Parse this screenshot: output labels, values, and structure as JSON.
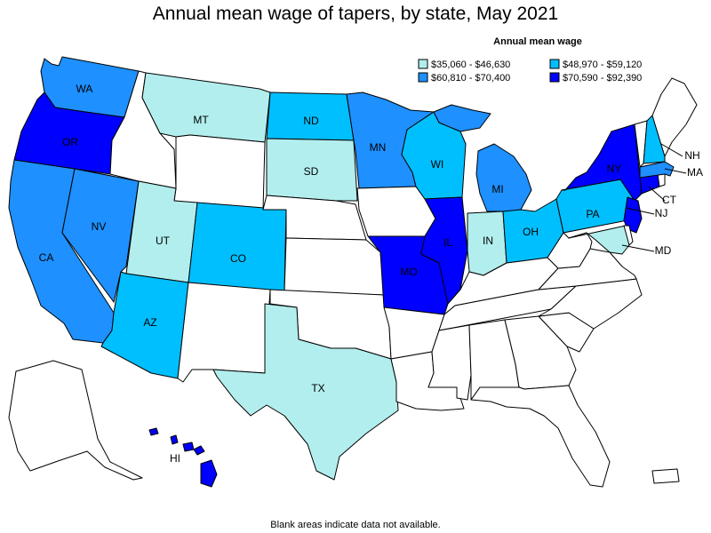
{
  "title": "Annual mean wage of tapers, by state, May 2021",
  "footnote": "Blank areas indicate data not available.",
  "legend": {
    "title": "Annual mean wage",
    "items": [
      {
        "label": "$35,060 - $46,630",
        "color": "#b2eeee"
      },
      {
        "label": "$48,970 - $59,120",
        "color": "#00bfff"
      },
      {
        "label": "$60,810 - $70,400",
        "color": "#1e90ff"
      },
      {
        "label": "$70,590 - $92,390",
        "color": "#0000ff"
      }
    ]
  },
  "colors": {
    "no_data": "#ffffff",
    "outline": "#000000"
  },
  "states": [
    {
      "code": "WA",
      "bin": 2,
      "labeled": true
    },
    {
      "code": "OR",
      "bin": 3,
      "labeled": true
    },
    {
      "code": "CA",
      "bin": 2,
      "labeled": true
    },
    {
      "code": "NV",
      "bin": 2,
      "labeled": true
    },
    {
      "code": "ID",
      "bin": null,
      "labeled": false
    },
    {
      "code": "MT",
      "bin": 0,
      "labeled": true
    },
    {
      "code": "WY",
      "bin": null,
      "labeled": false
    },
    {
      "code": "UT",
      "bin": 0,
      "labeled": true
    },
    {
      "code": "AZ",
      "bin": 1,
      "labeled": true
    },
    {
      "code": "CO",
      "bin": 1,
      "labeled": true
    },
    {
      "code": "NM",
      "bin": null,
      "labeled": false
    },
    {
      "code": "ND",
      "bin": 1,
      "labeled": true
    },
    {
      "code": "SD",
      "bin": 0,
      "labeled": true
    },
    {
      "code": "NE",
      "bin": null,
      "labeled": false
    },
    {
      "code": "KS",
      "bin": null,
      "labeled": false
    },
    {
      "code": "OK",
      "bin": null,
      "labeled": false
    },
    {
      "code": "TX",
      "bin": 0,
      "labeled": true
    },
    {
      "code": "MN",
      "bin": 2,
      "labeled": true
    },
    {
      "code": "IA",
      "bin": null,
      "labeled": false
    },
    {
      "code": "MO",
      "bin": 3,
      "labeled": true
    },
    {
      "code": "AR",
      "bin": null,
      "labeled": false
    },
    {
      "code": "LA",
      "bin": null,
      "labeled": false
    },
    {
      "code": "WI",
      "bin": 1,
      "labeled": true
    },
    {
      "code": "IL",
      "bin": 3,
      "labeled": true
    },
    {
      "code": "MI",
      "bin": 2,
      "labeled": true
    },
    {
      "code": "IN",
      "bin": 0,
      "labeled": true
    },
    {
      "code": "OH",
      "bin": 1,
      "labeled": true
    },
    {
      "code": "KY",
      "bin": null,
      "labeled": false
    },
    {
      "code": "TN",
      "bin": null,
      "labeled": false
    },
    {
      "code": "MS",
      "bin": null,
      "labeled": false
    },
    {
      "code": "AL",
      "bin": null,
      "labeled": false
    },
    {
      "code": "GA",
      "bin": null,
      "labeled": false
    },
    {
      "code": "FL",
      "bin": null,
      "labeled": false
    },
    {
      "code": "SC",
      "bin": null,
      "labeled": false
    },
    {
      "code": "NC",
      "bin": null,
      "labeled": false
    },
    {
      "code": "VA",
      "bin": null,
      "labeled": false
    },
    {
      "code": "WV",
      "bin": null,
      "labeled": false
    },
    {
      "code": "PA",
      "bin": 1,
      "labeled": true
    },
    {
      "code": "NY",
      "bin": 3,
      "labeled": true
    },
    {
      "code": "NJ",
      "bin": 3,
      "labeled": true
    },
    {
      "code": "MD",
      "bin": 0,
      "labeled": true
    },
    {
      "code": "DE",
      "bin": null,
      "labeled": false
    },
    {
      "code": "CT",
      "bin": 3,
      "labeled": true
    },
    {
      "code": "RI",
      "bin": null,
      "labeled": false
    },
    {
      "code": "MA",
      "bin": 2,
      "labeled": true
    },
    {
      "code": "VT",
      "bin": null,
      "labeled": false
    },
    {
      "code": "NH",
      "bin": 1,
      "labeled": true
    },
    {
      "code": "ME",
      "bin": null,
      "labeled": false
    },
    {
      "code": "AK",
      "bin": null,
      "labeled": false
    },
    {
      "code": "HI",
      "bin": 3,
      "labeled": true
    },
    {
      "code": "PR",
      "bin": null,
      "labeled": false
    }
  ]
}
